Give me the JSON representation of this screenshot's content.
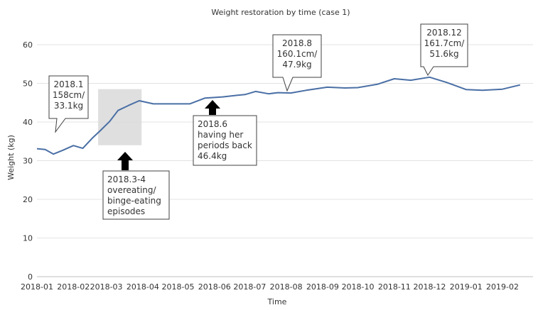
{
  "chart_data": {
    "type": "line",
    "title": "Weight restoration by time (case 1)",
    "xlabel": "Time",
    "ylabel": "Weight (kg)",
    "ylim": [
      0,
      60
    ],
    "yticks": [
      0,
      10,
      20,
      30,
      40,
      50,
      60
    ],
    "xticks": [
      "2018-01",
      "2018-02",
      "2018-03",
      "2018-04",
      "2018-05",
      "2018-06",
      "2018-07",
      "2018-08",
      "2018-09",
      "2018-10",
      "2018-11",
      "2018-12",
      "2019-01",
      "2019-02"
    ],
    "grid": "horizontal",
    "colors": {
      "line": "#4a6fa5",
      "grid": "#e3e3e3",
      "shade": "#d9d9d9"
    },
    "series": [
      {
        "x": [
          "2018-01-01",
          "2018-01-08",
          "2018-01-15",
          "2018-01-23",
          "2018-02-01",
          "2018-02-09",
          "2018-02-17",
          "2018-02-24",
          "2018-03-04",
          "2018-03-11",
          "2018-03-20",
          "2018-03-29",
          "2018-04-10",
          "2018-04-20",
          "2018-05-01",
          "2018-05-11",
          "2018-05-24",
          "2018-06-08",
          "2018-06-20",
          "2018-06-27",
          "2018-07-06",
          "2018-07-17",
          "2018-07-25",
          "2018-08-05",
          "2018-08-18",
          "2018-09-05",
          "2018-09-20",
          "2018-10-01",
          "2018-10-18",
          "2018-11-01",
          "2018-11-15",
          "2018-12-01",
          "2018-12-15",
          "2019-01-01",
          "2019-01-15",
          "2019-02-01",
          "2019-02-16"
        ],
        "values": [
          33.1,
          32.9,
          31.7,
          32.7,
          33.9,
          33.2,
          35.8,
          37.8,
          40.2,
          43.0,
          44.3,
          45.5,
          44.7,
          44.7,
          44.7,
          44.7,
          46.2,
          46.5,
          46.9,
          47.1,
          47.9,
          47.3,
          47.6,
          47.5,
          48.2,
          49.0,
          48.8,
          48.9,
          49.8,
          51.2,
          50.8,
          51.6,
          50.3,
          48.4,
          48.2,
          48.5,
          49.6
        ]
      }
    ],
    "shaded_region": {
      "x": [
        "2018-02-22",
        "2018-03-31"
      ],
      "y": [
        34,
        48.5
      ]
    },
    "annotations": [
      {
        "lines": [
          "2018.1",
          "158cm/",
          "33.1kg"
        ],
        "kind": "callout"
      },
      {
        "lines": [
          "2018.3-4",
          "overeating/",
          "binge-eating",
          "episodes"
        ],
        "kind": "arrow-box"
      },
      {
        "lines": [
          "2018.6",
          "having her",
          "periods back",
          "46.4kg"
        ],
        "kind": "arrow-box"
      },
      {
        "lines": [
          "2018.8",
          "160.1cm/",
          "47.9kg"
        ],
        "kind": "callout"
      },
      {
        "lines": [
          "2018.12",
          "161.7cm/",
          "51.6kg"
        ],
        "kind": "callout"
      }
    ]
  }
}
